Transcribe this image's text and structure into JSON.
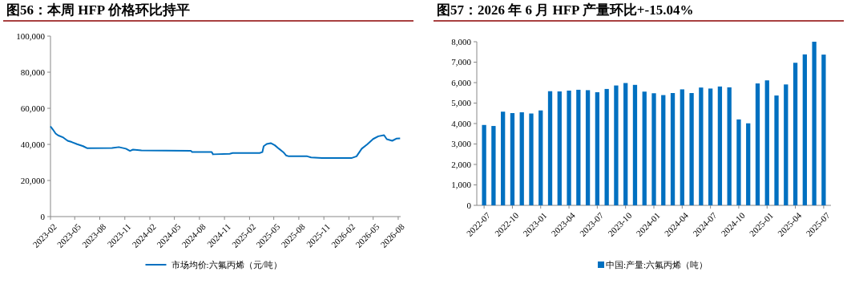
{
  "chart_data": [
    {
      "type": "line",
      "title": "图56：本周 HFP 价格环比持平",
      "legend": "bottom",
      "xlim": [
        "2023-02-01",
        "2026-08-10"
      ],
      "xticks": [
        {
          "value": "2023-02-01",
          "label": "2023-02"
        },
        {
          "value": "2023-05-01",
          "label": "2023-05"
        },
        {
          "value": "2023-08-01",
          "label": "2023-08"
        },
        {
          "value": "2023-11-01",
          "label": "2023-11"
        },
        {
          "value": "2024-02-01",
          "label": "2024-02"
        },
        {
          "value": "2024-05-01",
          "label": "2024-05"
        },
        {
          "value": "2024-08-01",
          "label": "2024-08"
        },
        {
          "value": "2024-11-01",
          "label": "2024-11"
        },
        {
          "value": "2025-02-01",
          "label": "2025-02"
        },
        {
          "value": "2025-05-01",
          "label": "2025-05"
        },
        {
          "value": "2025-08-01",
          "label": "2025-08"
        },
        {
          "value": "2025-11-01",
          "label": "2025-11"
        },
        {
          "value": "2026-02-01",
          "label": "2026-02"
        },
        {
          "value": "2026-05-01",
          "label": "2026-05"
        },
        {
          "value": "2026-08-01",
          "label": "2026-08"
        }
      ],
      "ylim": [
        0,
        100000
      ],
      "yticks": [
        {
          "value": 0,
          "label": "0"
        },
        {
          "value": 20000,
          "label": "20,000"
        },
        {
          "value": 40000,
          "label": "40,000"
        },
        {
          "value": 60000,
          "label": "60,000"
        },
        {
          "value": 80000,
          "label": "80,000"
        },
        {
          "value": 100000,
          "label": "100,000"
        }
      ],
      "x": [
        "2023-02-01",
        "2023-02-10",
        "2023-02-20",
        "2023-03-01",
        "2023-03-20",
        "2023-04-05",
        "2023-04-20",
        "2023-05-10",
        "2023-06-01",
        "2023-06-15",
        "2023-09-15",
        "2023-10-10",
        "2023-11-05",
        "2023-11-20",
        "2023-12-01",
        "2024-01-01",
        "2024-07-01",
        "2024-07-05",
        "2024-09-15",
        "2024-09-20",
        "2024-11-20",
        "2024-12-01",
        "2025-03-10",
        "2025-03-20",
        "2025-03-25",
        "2025-04-05",
        "2025-04-20",
        "2025-05-05",
        "2025-05-20",
        "2025-06-05",
        "2025-06-15",
        "2025-06-25",
        "2025-09-01",
        "2025-09-15",
        "2025-10-25",
        "2026-02-10",
        "2026-03-01",
        "2026-03-20",
        "2026-04-10",
        "2026-05-01",
        "2026-05-20",
        "2026-06-10",
        "2026-06-20",
        "2026-07-10",
        "2026-07-25",
        "2026-08-08"
      ],
      "series": [
        {
          "name": "市场均价:六氟丙烯（元/吨）",
          "color": "#0070c0",
          "values": [
            50000,
            48200,
            46000,
            45000,
            43800,
            42000,
            41300,
            40100,
            39000,
            37900,
            38000,
            38500,
            37600,
            36400,
            37100,
            36700,
            36400,
            35800,
            35800,
            34500,
            34800,
            35200,
            35200,
            35700,
            39000,
            40200,
            40700,
            39500,
            37600,
            35700,
            33900,
            33400,
            33400,
            32800,
            32400,
            32400,
            33400,
            37600,
            40100,
            43000,
            44500,
            45100,
            42900,
            42000,
            43200,
            43300
          ]
        }
      ]
    },
    {
      "type": "bar",
      "title": "图57：2026 年 6 月 HFP 产量环比+-15.04%",
      "legend": "bottom",
      "ylim": [
        0,
        8000
      ],
      "yticks": [
        {
          "value": 0,
          "label": "0"
        },
        {
          "value": 1000,
          "label": "1,000"
        },
        {
          "value": 2000,
          "label": "2,000"
        },
        {
          "value": 3000,
          "label": "3,000"
        },
        {
          "value": 4000,
          "label": "4,000"
        },
        {
          "value": 5000,
          "label": "5,000"
        },
        {
          "value": 6000,
          "label": "6,000"
        },
        {
          "value": 7000,
          "label": "7,000"
        },
        {
          "value": 8000,
          "label": "8,000"
        }
      ],
      "categories": [
        "2022-07",
        null,
        null,
        "2022-10",
        null,
        null,
        "2023-01",
        null,
        null,
        "2023-04",
        null,
        null,
        "2023-07",
        null,
        null,
        "2023-10",
        null,
        null,
        "2024-01",
        null,
        null,
        "2024-04",
        null,
        null,
        "2024-07",
        null,
        null,
        "2024-10",
        null,
        null,
        "2025-01",
        null,
        null,
        "2025-04",
        null,
        null,
        "2025-07"
      ],
      "series": [
        {
          "name": "中国:产量:六氟丙烯（吨）",
          "color": "#0070c0",
          "values": [
            3930,
            3880,
            4580,
            4510,
            4550,
            4490,
            4640,
            5580,
            5570,
            5610,
            5650,
            5630,
            5530,
            5690,
            5860,
            5980,
            5890,
            5560,
            5480,
            5390,
            5490,
            5670,
            5490,
            5760,
            5710,
            5810,
            5770,
            4200,
            4010,
            5960,
            6110,
            5370,
            5910,
            6970,
            7380,
            8000,
            7370
          ]
        }
      ]
    }
  ]
}
